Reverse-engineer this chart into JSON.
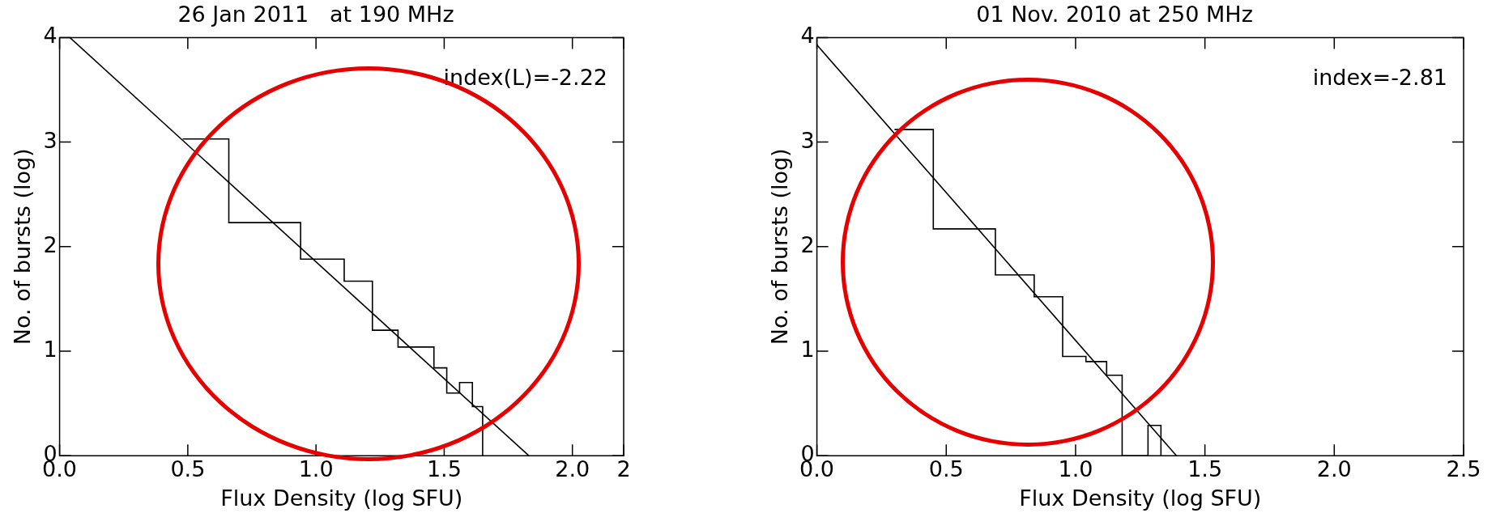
{
  "chart_data": [
    {
      "type": "histogram",
      "title": "26 Jan 2011   at 190 MHz",
      "xlabel": "Flux Density (log SFU)",
      "ylabel": "No. of bursts (log)",
      "xlim": [
        0,
        2.2
      ],
      "xticks": [
        {
          "value": 0,
          "label": "0.0"
        },
        {
          "value": 0.5,
          "label": "0.5"
        },
        {
          "value": 1,
          "label": "1.0"
        },
        {
          "value": 1.5,
          "label": "1.5"
        },
        {
          "value": 2,
          "label": "2.0"
        },
        {
          "value": 2.2,
          "label": "2"
        }
      ],
      "ylim": [
        0,
        4
      ],
      "yticks": [
        0,
        1,
        2,
        3,
        4
      ],
      "grid": false,
      "legend": false,
      "annotations": [
        "index(L)=-2.22"
      ],
      "series": [
        {
          "type": "histogram",
          "color": "#000000",
          "bins": [
            0.48,
            0.66,
            0.94,
            1.11,
            1.22,
            1.32,
            1.46,
            1.51,
            1.56,
            1.61,
            1.65
          ],
          "values": [
            3.03,
            2.23,
            1.88,
            1.67,
            1.2,
            1.04,
            0.84,
            0.6,
            0.7,
            0.47
          ]
        },
        {
          "type": "line",
          "color": "#000000",
          "x": [
            0.04,
            1.83
          ],
          "values": [
            4,
            0
          ]
        }
      ]
    },
    {
      "type": "histogram",
      "title": "01 Nov. 2010 at 250 MHz",
      "xlabel": "Flux Density (log SFU)",
      "ylabel": "No. of bursts (log)",
      "xlim": [
        0,
        2.5
      ],
      "xticks": [
        {
          "value": 0,
          "label": "0.0"
        },
        {
          "value": 0.5,
          "label": "0.5"
        },
        {
          "value": 1,
          "label": "1.0"
        },
        {
          "value": 1.5,
          "label": "1.5"
        },
        {
          "value": 2,
          "label": "2.0"
        },
        {
          "value": 2.5,
          "label": "2.5"
        }
      ],
      "ylim": [
        0,
        4
      ],
      "yticks": [
        0,
        1,
        2,
        3,
        4
      ],
      "grid": false,
      "legend": false,
      "annotations": [
        "index=-2.81"
      ],
      "series": [
        {
          "type": "histogram",
          "color": "#000000",
          "bins": [
            0.3,
            0.45,
            0.69,
            0.84,
            0.95,
            1.04,
            1.12,
            1.18,
            1.28,
            1.33
          ],
          "values": [
            3.12,
            2.17,
            1.73,
            1.52,
            0.95,
            0.9,
            0.77,
            0,
            0.29
          ]
        },
        {
          "type": "line",
          "color": "#000000",
          "x": [
            0,
            1.39
          ],
          "values": [
            3.93,
            0
          ]
        }
      ]
    }
  ]
}
